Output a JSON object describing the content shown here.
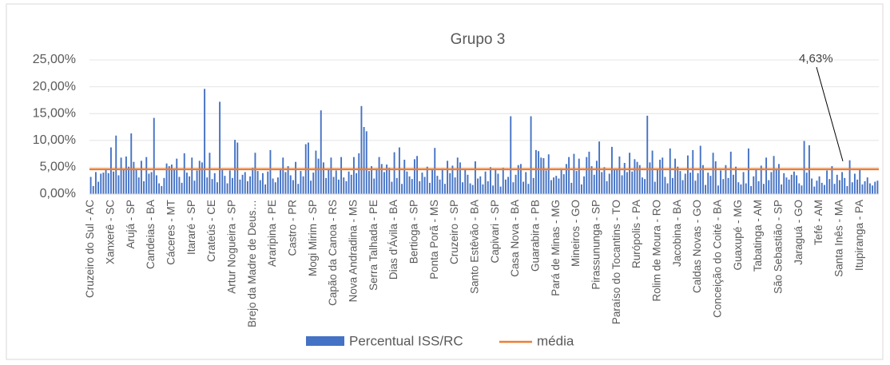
{
  "chart_data": {
    "type": "bar",
    "title": "Grupo 3",
    "categories": [
      "Cruzeiro do Sul - AC",
      null,
      null,
      null,
      null,
      null,
      null,
      null,
      "Xanxerê - SC",
      null,
      null,
      null,
      null,
      null,
      null,
      null,
      "Arujá - SP",
      null,
      null,
      null,
      null,
      null,
      null,
      null,
      "Candeias - BA",
      null,
      null,
      null,
      null,
      null,
      null,
      null,
      "Cáceres - MT",
      null,
      null,
      null,
      null,
      null,
      null,
      null,
      "Itararé - SP",
      null,
      null,
      null,
      null,
      null,
      null,
      null,
      "Crateús - CE",
      null,
      null,
      null,
      null,
      null,
      null,
      null,
      "Artur Nogueira - SP",
      null,
      null,
      null,
      null,
      null,
      null,
      null,
      "Brejo da Madre de Deus…",
      null,
      null,
      null,
      null,
      null,
      null,
      null,
      "Araripina - PE",
      null,
      null,
      null,
      null,
      null,
      null,
      null,
      "Castro - PR",
      null,
      null,
      null,
      null,
      null,
      null,
      null,
      "Mogi Mirim - SP",
      null,
      null,
      null,
      null,
      null,
      null,
      null,
      "Capão da Canoa - RS",
      null,
      null,
      null,
      null,
      null,
      null,
      null,
      "Nova Andradina - MS",
      null,
      null,
      null,
      null,
      null,
      null,
      null,
      "Serra Talhada - PE",
      null,
      null,
      null,
      null,
      null,
      null,
      null,
      "Dias d'Ávila - BA",
      null,
      null,
      null,
      null,
      null,
      null,
      null,
      "Bertioga - SP",
      null,
      null,
      null,
      null,
      null,
      null,
      null,
      "Ponta Porã - MS",
      null,
      null,
      null,
      null,
      null,
      null,
      null,
      "Cruzeiro - SP",
      null,
      null,
      null,
      null,
      null,
      null,
      null,
      "Santo Estêvão - BA",
      null,
      null,
      null,
      null,
      null,
      null,
      null,
      "Capivari - SP",
      null,
      null,
      null,
      null,
      null,
      null,
      null,
      "Casa Nova - BA",
      null,
      null,
      null,
      null,
      null,
      null,
      null,
      "Guarabira - PB",
      null,
      null,
      null,
      null,
      null,
      null,
      null,
      "Pará de Minas - MG",
      null,
      null,
      null,
      null,
      null,
      null,
      null,
      "Mineiros - GO",
      null,
      null,
      null,
      null,
      null,
      null,
      null,
      "Pirassununga - SP",
      null,
      null,
      null,
      null,
      null,
      null,
      null,
      "Paraíso do Tocantins - TO",
      null,
      null,
      null,
      null,
      null,
      null,
      null,
      "Rurópolis - PA",
      null,
      null,
      null,
      null,
      null,
      null,
      null,
      "Rolim de Moura - RO",
      null,
      null,
      null,
      null,
      null,
      null,
      null,
      "Jacobina - BA",
      null,
      null,
      null,
      null,
      null,
      null,
      null,
      "Caldas Novas - GO",
      null,
      null,
      null,
      null,
      null,
      null,
      null,
      "Conceição do Coité - BA",
      null,
      null,
      null,
      null,
      null,
      null,
      null,
      "Guaxupé - MG",
      null,
      null,
      null,
      null,
      null,
      null,
      null,
      "Tabatinga - AM",
      null,
      null,
      null,
      null,
      null,
      null,
      null,
      "São Sebastião - SP",
      null,
      null,
      null,
      null,
      null,
      null,
      null,
      "Jaraguá - GO",
      null,
      null,
      null,
      null,
      null,
      null,
      null,
      "Tefé - AM",
      null,
      null,
      null,
      null,
      null,
      null,
      null,
      "Santa Inês - MA",
      null,
      null,
      null,
      null,
      null,
      null,
      null,
      "Itupiranga - PA",
      null,
      null,
      null,
      null,
      null,
      null,
      null
    ],
    "series": [
      {
        "name": "Percentual ISS/RC",
        "color": "#4472c4",
        "values": [
          3.2,
          1.5,
          4.1,
          2.3,
          3.8,
          4.0,
          4.5,
          3.9,
          8.7,
          4.2,
          10.9,
          3.5,
          6.8,
          4.6,
          7.0,
          5.1,
          11.3,
          6.0,
          4.5,
          3.1,
          6.2,
          2.4,
          6.9,
          3.8,
          4.1,
          14.2,
          3.5,
          2.0,
          1.5,
          3.0,
          5.7,
          5.2,
          5.5,
          4.8,
          6.6,
          3.2,
          2.1,
          7.6,
          4.0,
          3.3,
          6.8,
          2.5,
          4.4,
          6.2,
          5.9,
          19.6,
          3.1,
          7.7,
          2.8,
          3.9,
          2.2,
          17.2,
          4.6,
          3.4,
          2.0,
          4.4,
          3.0,
          10.1,
          9.6,
          2.7,
          3.6,
          4.1,
          2.4,
          3.3,
          4.9,
          7.7,
          4.3,
          2.6,
          3.9,
          1.8,
          4.2,
          8.2,
          2.9,
          2.2,
          3.1,
          4.5,
          6.8,
          4.1,
          5.2,
          3.5,
          2.6,
          6.0,
          1.9,
          4.3,
          3.3,
          9.3,
          9.6,
          2.5,
          4.0,
          8.1,
          6.6,
          15.6,
          5.9,
          3.0,
          4.7,
          6.8,
          3.2,
          4.4,
          2.7,
          6.9,
          3.1,
          2.4,
          4.2,
          3.6,
          6.9,
          3.9,
          7.6,
          16.4,
          12.5,
          11.7,
          4.3,
          5.2,
          2.9,
          4.8,
          6.9,
          5.6,
          4.1,
          5.5,
          4.9,
          2.3,
          7.8,
          3.0,
          8.7,
          1.9,
          6.4,
          4.2,
          3.3,
          2.8,
          6.5,
          7.1,
          2.4,
          4.0,
          3.2,
          5.1,
          2.1,
          4.6,
          8.6,
          3.4,
          2.7,
          4.8,
          1.9,
          6.2,
          3.9,
          5.3,
          3.1,
          6.8,
          5.9,
          2.2,
          4.5,
          3.6,
          2.0,
          1.7,
          6.1,
          2.9,
          3.3,
          1.8,
          4.2,
          2.4,
          5.0,
          1.6,
          4.6,
          3.8,
          1.4,
          4.9,
          2.7,
          3.2,
          14.5,
          2.2,
          3.6,
          5.4,
          5.6,
          2.3,
          4.1,
          1.9,
          14.5,
          3.0,
          8.2,
          8.0,
          6.8,
          6.7,
          4.4,
          7.4,
          2.6,
          3.1,
          3.4,
          2.9,
          4.8,
          3.7,
          5.6,
          6.9,
          2.1,
          7.5,
          4.3,
          6.6,
          1.8,
          3.3,
          6.9,
          7.9,
          5.2,
          3.6,
          6.2,
          9.8,
          4.1,
          5.0,
          2.4,
          3.8,
          8.8,
          4.5,
          4.6,
          7.0,
          3.5,
          5.8,
          4.1,
          7.7,
          4.2,
          6.5,
          6.0,
          5.4,
          3.1,
          2.8,
          14.6,
          5.9,
          8.1,
          2.3,
          4.7,
          6.4,
          6.8,
          3.2,
          2.0,
          8.5,
          3.0,
          6.6,
          5.1,
          4.3,
          2.6,
          3.8,
          7.2,
          4.0,
          8.2,
          2.5,
          3.9,
          9.0,
          5.4,
          1.7,
          4.0,
          3.4,
          7.7,
          6.1,
          1.6,
          4.4,
          2.8,
          5.4,
          3.0,
          7.9,
          3.6,
          5.1,
          2.2,
          1.8,
          4.1,
          2.0,
          8.5,
          1.5,
          3.3,
          4.7,
          2.4,
          5.3,
          1.9,
          6.8,
          2.6,
          4.1,
          7.1,
          4.6,
          5.6,
          1.8,
          3.9,
          3.1,
          2.7,
          3.6,
          4.2,
          3.5,
          2.0,
          1.6,
          9.9,
          4.0,
          9.1,
          2.9,
          1.4,
          2.5,
          3.3,
          2.1,
          1.7,
          4.4,
          2.8,
          5.2,
          1.9,
          3.6,
          2.6,
          4.1,
          3.0,
          1.5,
          6.3,
          2.2,
          3.8,
          2.7,
          4.5,
          1.8,
          2.4,
          3.1,
          2.0,
          1.6,
          2.3,
          2.5
        ]
      }
    ],
    "mean_line": {
      "name": "média",
      "color": "#ed7d31",
      "value": 4.63,
      "label": "4,63%"
    },
    "ylim": [
      0,
      25
    ],
    "yticks": [
      {
        "value": 0,
        "label": "0,00%"
      },
      {
        "value": 5,
        "label": "5,00%"
      },
      {
        "value": 10,
        "label": "10,00%"
      },
      {
        "value": 15,
        "label": "15,00%"
      },
      {
        "value": 20,
        "label": "20,00%"
      },
      {
        "value": 25,
        "label": "25,00%"
      }
    ],
    "grid": true
  }
}
